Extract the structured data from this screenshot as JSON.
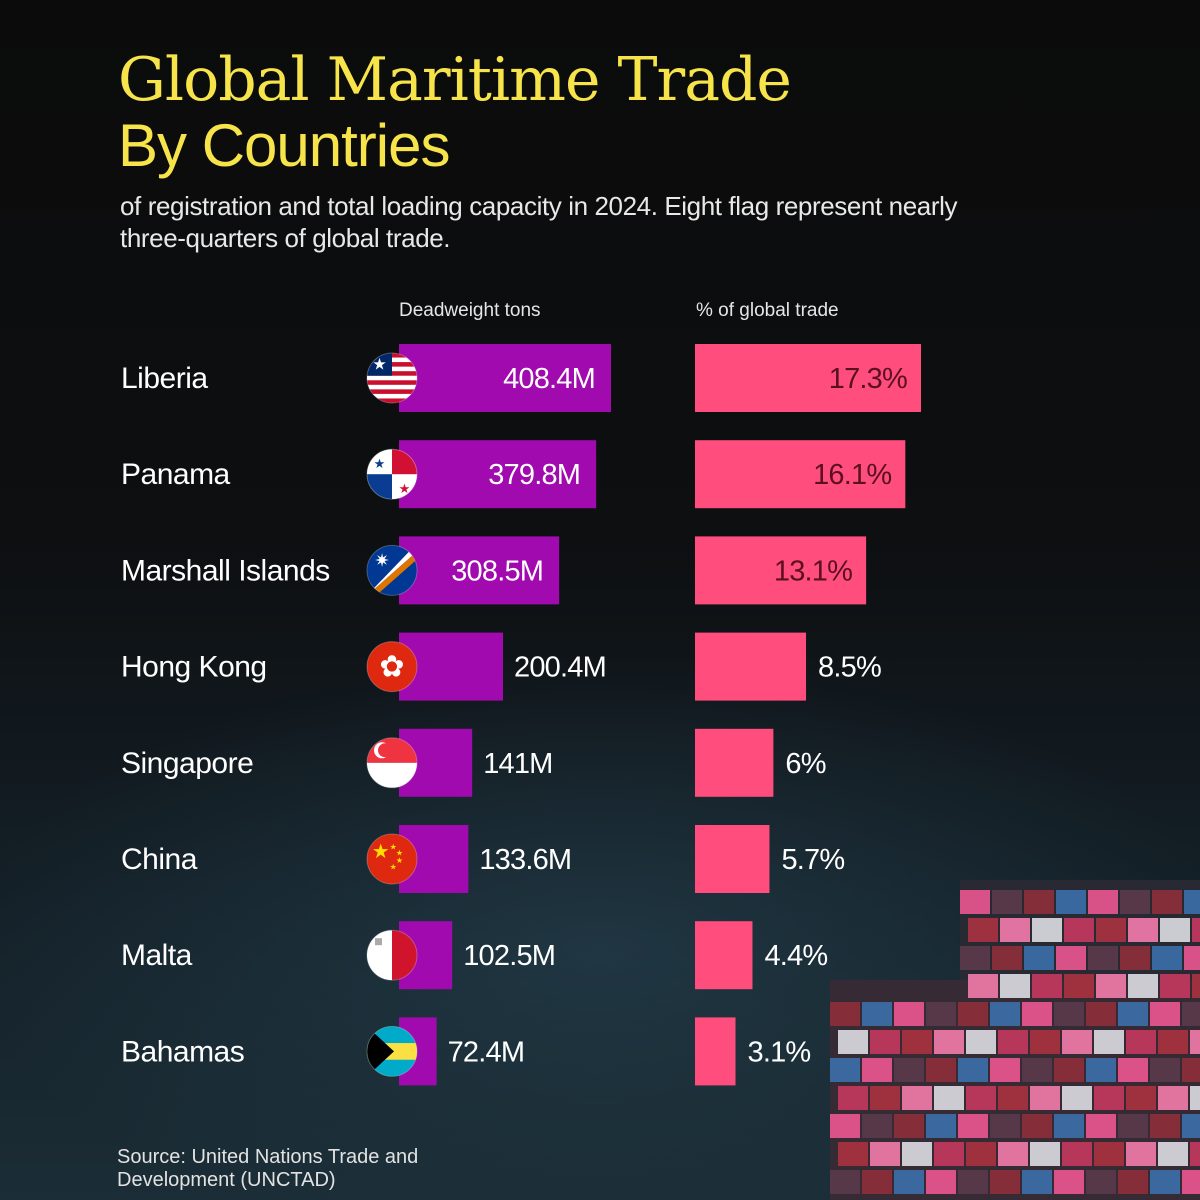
{
  "title_line1": "Global Maritime Trade",
  "title_line2": "By Countries",
  "subtitle": "of registration and total loading capacity in 2024. Eight flag represent nearly three-quarters of global trade.",
  "column_headers": {
    "tons": "Deadweight tons",
    "share": "% of global trade"
  },
  "source": "Source: United Nations Trade and Development (UNCTAD)",
  "colors": {
    "title": "#f6e44a",
    "tons_bar": "#a00aae",
    "share_bar": "#ff4d7d",
    "share_label_inside": "#5a1020"
  },
  "chart_data": {
    "type": "bar",
    "orientation": "horizontal",
    "categories": [
      "Liberia",
      "Panama",
      "Marshall Islands",
      "Hong Kong",
      "Singapore",
      "China",
      "Malta",
      "Bahamas"
    ],
    "flags": [
      "liberia-flag-icon",
      "panama-flag-icon",
      "marshall-islands-flag-icon",
      "hong-kong-flag-icon",
      "singapore-flag-icon",
      "china-flag-icon",
      "malta-flag-icon",
      "bahamas-flag-icon"
    ],
    "series": [
      {
        "name": "Deadweight tons",
        "values": [
          408.4,
          379.8,
          308.5,
          200.4,
          141,
          133.6,
          102.5,
          72.4
        ],
        "labels": [
          "408.4M",
          "379.8M",
          "308.5M",
          "200.4M",
          "141M",
          "133.6M",
          "102.5M",
          "72.4M"
        ]
      },
      {
        "name": "% of global trade",
        "values": [
          17.3,
          16.1,
          13.1,
          8.5,
          6,
          5.7,
          4.4,
          3.1
        ],
        "labels": [
          "17.3%",
          "16.1%",
          "13.1%",
          "8.5%",
          "6%",
          "5.7%",
          "4.4%",
          "3.1%"
        ]
      }
    ]
  }
}
